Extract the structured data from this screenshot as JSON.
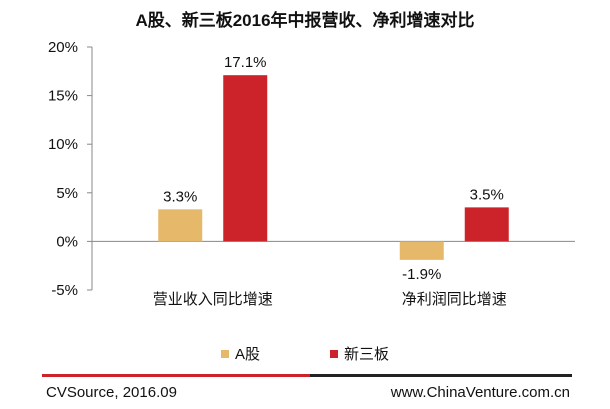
{
  "chart_data": {
    "type": "bar",
    "title": "A股、新三板2016年中报营收、净利增速对比",
    "categories": [
      "营业收入同比增速",
      "净利润同比增速"
    ],
    "series": [
      {
        "name": "A股",
        "values": [
          3.3,
          -1.9
        ],
        "labels": [
          "3.3%",
          "-1.9%"
        ],
        "color": "#e6b96a"
      },
      {
        "name": "新三板",
        "values": [
          17.1,
          3.5
        ],
        "labels": [
          "17.1%",
          "3.5%"
        ],
        "color": "#cc2229"
      }
    ],
    "ylim": [
      -5,
      20
    ],
    "yticks": [
      20,
      15,
      10,
      5,
      0,
      -5
    ],
    "ytick_labels": [
      "20%",
      "15%",
      "10%",
      "5%",
      "0%",
      "-5%"
    ],
    "xlabel": "",
    "ylabel": "",
    "grid": false,
    "legend_position": "bottom"
  },
  "footer": {
    "source": "CVSource, 2016.09",
    "website": "www.ChinaVenture.com.cn"
  }
}
